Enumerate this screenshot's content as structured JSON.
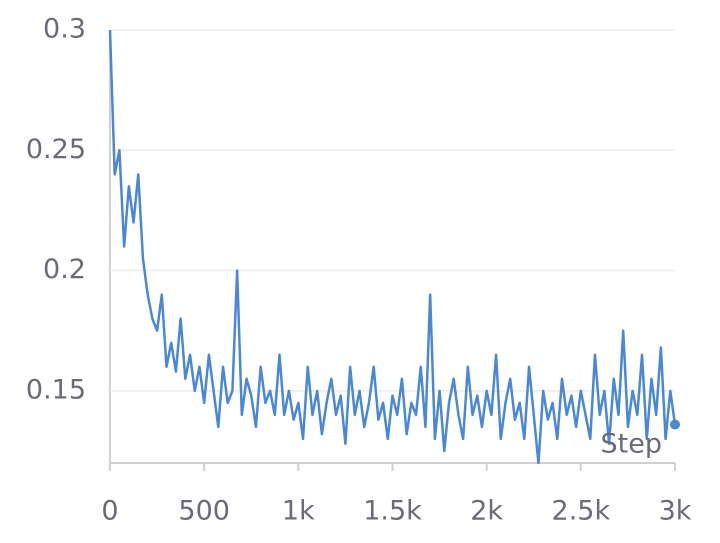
{
  "chart_data": {
    "type": "line",
    "x_label": "Step",
    "x": [
      0,
      25,
      50,
      75,
      100,
      125,
      150,
      175,
      200,
      225,
      250,
      275,
      300,
      325,
      350,
      375,
      400,
      425,
      450,
      475,
      500,
      525,
      550,
      575,
      600,
      625,
      650,
      675,
      700,
      725,
      750,
      775,
      800,
      825,
      850,
      875,
      900,
      925,
      950,
      975,
      1000,
      1025,
      1050,
      1075,
      1100,
      1125,
      1150,
      1175,
      1200,
      1225,
      1250,
      1275,
      1300,
      1325,
      1350,
      1375,
      1400,
      1425,
      1450,
      1475,
      1500,
      1525,
      1550,
      1575,
      1600,
      1625,
      1650,
      1675,
      1700,
      1725,
      1750,
      1775,
      1800,
      1825,
      1850,
      1875,
      1900,
      1925,
      1950,
      1975,
      2000,
      2025,
      2050,
      2075,
      2100,
      2125,
      2150,
      2175,
      2200,
      2225,
      2250,
      2275,
      2300,
      2325,
      2350,
      2375,
      2400,
      2425,
      2450,
      2475,
      2500,
      2525,
      2550,
      2575,
      2600,
      2625,
      2650,
      2675,
      2700,
      2725,
      2750,
      2775,
      2800,
      2825,
      2850,
      2875,
      2900,
      2925,
      2950,
      2975,
      3000
    ],
    "values": [
      0.3,
      0.24,
      0.25,
      0.21,
      0.235,
      0.22,
      0.24,
      0.205,
      0.19,
      0.18,
      0.175,
      0.19,
      0.16,
      0.17,
      0.158,
      0.18,
      0.155,
      0.165,
      0.15,
      0.16,
      0.145,
      0.165,
      0.15,
      0.135,
      0.16,
      0.145,
      0.15,
      0.2,
      0.14,
      0.155,
      0.148,
      0.135,
      0.16,
      0.145,
      0.15,
      0.14,
      0.165,
      0.14,
      0.15,
      0.138,
      0.145,
      0.13,
      0.16,
      0.14,
      0.15,
      0.132,
      0.145,
      0.155,
      0.14,
      0.148,
      0.128,
      0.16,
      0.14,
      0.15,
      0.135,
      0.145,
      0.16,
      0.138,
      0.145,
      0.13,
      0.148,
      0.14,
      0.155,
      0.132,
      0.145,
      0.14,
      0.16,
      0.135,
      0.19,
      0.13,
      0.15,
      0.125,
      0.145,
      0.155,
      0.14,
      0.13,
      0.16,
      0.14,
      0.148,
      0.135,
      0.15,
      0.14,
      0.165,
      0.13,
      0.145,
      0.155,
      0.138,
      0.145,
      0.13,
      0.16,
      0.14,
      0.12,
      0.15,
      0.138,
      0.145,
      0.13,
      0.155,
      0.14,
      0.148,
      0.135,
      0.15,
      0.14,
      0.13,
      0.165,
      0.14,
      0.15,
      0.128,
      0.155,
      0.14,
      0.175,
      0.135,
      0.15,
      0.14,
      0.165,
      0.13,
      0.155,
      0.14,
      0.168,
      0.13,
      0.15,
      0.136
    ],
    "color": "#4a88d6",
    "xlim": [
      0,
      3000
    ],
    "xticks": [
      0,
      500,
      {
        "value": 1000,
        "label": "1k"
      },
      {
        "value": 1500,
        "label": "1.5k"
      },
      {
        "value": 2000,
        "label": "2k"
      },
      {
        "value": 2500,
        "label": "2.5k"
      },
      {
        "value": 3000,
        "label": "3k"
      }
    ],
    "ylim": [
      0.12,
      0.3
    ],
    "yticks": [
      0.15,
      0.2,
      0.25,
      0.3
    ],
    "grid": true
  }
}
